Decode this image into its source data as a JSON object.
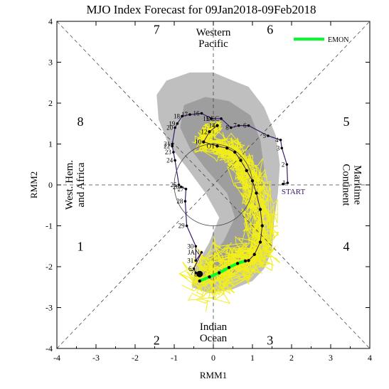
{
  "chart_data": {
    "type": "line",
    "title": "MJO Index Forecast for 09Jan2018-09Feb2018",
    "xlabel": "RMM1",
    "ylabel": "RMM2",
    "xlim": [
      -4,
      4
    ],
    "ylim": [
      -4,
      4
    ],
    "x_ticks": [
      -4,
      -3,
      -2,
      -1,
      0,
      1,
      2,
      3,
      4
    ],
    "y_ticks": [
      -4,
      -3,
      -2,
      -1,
      0,
      1,
      2,
      3,
      4
    ],
    "grid": false,
    "legend_position": "top-right",
    "phase_numbers": [
      {
        "label": "1",
        "x": -3.4,
        "y": -1.5
      },
      {
        "label": "2",
        "x": -1.45,
        "y": -3.8
      },
      {
        "label": "3",
        "x": 1.45,
        "y": -3.8
      },
      {
        "label": "4",
        "x": 3.4,
        "y": -1.5
      },
      {
        "label": "5",
        "x": 3.4,
        "y": 1.55
      },
      {
        "label": "6",
        "x": 1.45,
        "y": 3.8
      },
      {
        "label": "7",
        "x": -1.45,
        "y": 3.8
      },
      {
        "label": "8",
        "x": -3.4,
        "y": 1.55
      }
    ],
    "region_labels": [
      {
        "lines": [
          "Western",
          "Pacific"
        ],
        "x": 0,
        "y": 3.6,
        "rotate": 0
      },
      {
        "lines": [
          "Indian",
          "Ocean"
        ],
        "x": 0,
        "y": -3.6,
        "rotate": 0
      },
      {
        "lines": [
          "West. Hem.",
          "and Africa"
        ],
        "x": -3.55,
        "y": 0,
        "rotate": -90
      },
      {
        "lines": [
          "Maritime",
          "Continent"
        ],
        "x": 3.55,
        "y": 0,
        "rotate": 90
      }
    ],
    "observed_track": {
      "name": "",
      "color": "#3a1a6e",
      "points": [
        {
          "label": "START",
          "x": 1.78,
          "y": 0.02
        },
        {
          "label": "1",
          "x": 1.9,
          "y": 0.05
        },
        {
          "label": "2",
          "x": 1.88,
          "y": 0.5
        },
        {
          "label": "3",
          "x": 1.75,
          "y": 0.9
        },
        {
          "label": "4",
          "x": 1.72,
          "y": 1.1
        },
        {
          "label": "5",
          "x": 1.4,
          "y": 1.2
        },
        {
          "label": "6",
          "x": 0.9,
          "y": 1.45
        },
        {
          "label": "7",
          "x": 0.65,
          "y": 1.45
        },
        {
          "label": "8",
          "x": 0.45,
          "y": 1.4
        },
        {
          "label": "DEC",
          "x": 0.2,
          "y": 1.62
        },
        {
          "label": "15",
          "x": -0.05,
          "y": 1.62
        },
        {
          "label": "16",
          "x": -0.3,
          "y": 1.75
        },
        {
          "label": "17",
          "x": -0.6,
          "y": 1.72
        },
        {
          "label": "18",
          "x": -0.8,
          "y": 1.68
        },
        {
          "label": "19",
          "x": -0.92,
          "y": 1.5
        },
        {
          "label": "20",
          "x": -0.98,
          "y": 1.4
        },
        {
          "label": "21",
          "x": -1.05,
          "y": 1.0
        },
        {
          "label": "22",
          "x": -1.05,
          "y": 0.95
        },
        {
          "label": "23",
          "x": -1.02,
          "y": 0.8
        },
        {
          "label": "24",
          "x": -0.98,
          "y": 0.6
        },
        {
          "label": "25",
          "x": -0.88,
          "y": 0.0
        },
        {
          "label": "26",
          "x": -0.82,
          "y": -0.05
        },
        {
          "label": "27",
          "x": -0.7,
          "y": -0.1
        },
        {
          "label": "28",
          "x": -0.72,
          "y": -0.4
        },
        {
          "label": "29",
          "x": -0.68,
          "y": -1.0
        },
        {
          "label": "30",
          "x": -0.45,
          "y": -1.5
        },
        {
          "label": "31",
          "x": -0.45,
          "y": -1.85
        },
        {
          "label": "JAN",
          "x": -0.3,
          "y": -1.65
        },
        {
          "label": "6",
          "x": -0.5,
          "y": -2.05
        },
        {
          "label": "7",
          "x": -0.45,
          "y": -2.15
        },
        {
          "label": "8",
          "x": -0.35,
          "y": -2.18
        }
      ]
    },
    "current_track": {
      "name": "",
      "color": "#3a1a6e",
      "points": [
        {
          "label": "14",
          "x": 0.1,
          "y": 1.45
        },
        {
          "label": "12",
          "x": -0.1,
          "y": 1.3
        },
        {
          "label": "10",
          "x": -0.25,
          "y": 1.05
        },
        {
          "label": "OT",
          "x": 0.1,
          "y": 0.95
        },
        {
          "label": "",
          "x": 0.35,
          "y": 0.9
        },
        {
          "label": "",
          "x": 0.55,
          "y": 0.8
        },
        {
          "label": "",
          "x": 0.7,
          "y": 0.6
        },
        {
          "label": "",
          "x": 0.85,
          "y": 0.35
        },
        {
          "label": "",
          "x": 1.0,
          "y": 0.1
        },
        {
          "label": "",
          "x": 1.1,
          "y": -0.2
        },
        {
          "label": "",
          "x": 1.2,
          "y": -0.6
        },
        {
          "label": "",
          "x": 1.25,
          "y": -1.0
        },
        {
          "label": "",
          "x": 1.2,
          "y": -1.4
        },
        {
          "label": "",
          "x": 1.05,
          "y": -1.7
        },
        {
          "label": "",
          "x": 0.9,
          "y": -1.85
        }
      ]
    },
    "ensemble_mean": {
      "name": "EMON",
      "color": "#00ff2a",
      "points": [
        {
          "x": -0.35,
          "y": -2.35
        },
        {
          "x": -0.1,
          "y": -2.25
        },
        {
          "x": 0.15,
          "y": -2.15
        },
        {
          "x": 0.4,
          "y": -2.02
        },
        {
          "x": 0.62,
          "y": -1.92
        },
        {
          "x": 0.82,
          "y": -1.86
        }
      ]
    },
    "ensemble_members": {
      "count": 40,
      "color": "#f2ee1a"
    },
    "spread_band": {
      "color": "#a9a9a9",
      "outer": [
        [
          0.0,
          2.75
        ],
        [
          0.5,
          2.55
        ],
        [
          0.9,
          2.4
        ],
        [
          1.3,
          1.9
        ],
        [
          1.6,
          1.2
        ],
        [
          1.7,
          0.5
        ],
        [
          1.65,
          -0.2
        ],
        [
          1.55,
          -0.9
        ],
        [
          1.5,
          -1.6
        ],
        [
          1.3,
          -2.05
        ],
        [
          1.0,
          -2.35
        ],
        [
          0.5,
          -2.55
        ],
        [
          -0.1,
          -2.65
        ],
        [
          -0.55,
          -2.5
        ],
        [
          -0.45,
          -2.0
        ],
        [
          -0.1,
          -1.4
        ],
        [
          0.15,
          -0.8
        ],
        [
          -0.2,
          -0.2
        ],
        [
          -0.7,
          0.45
        ],
        [
          -1.15,
          1.0
        ],
        [
          -1.4,
          1.6
        ],
        [
          -1.45,
          2.2
        ],
        [
          -1.2,
          2.55
        ],
        [
          -0.6,
          2.75
        ]
      ],
      "inner": [
        [
          -0.2,
          2.15
        ],
        [
          0.4,
          2.05
        ],
        [
          0.95,
          1.7
        ],
        [
          1.2,
          1.1
        ],
        [
          1.3,
          0.4
        ],
        [
          1.25,
          -0.3
        ],
        [
          1.2,
          -1.0
        ],
        [
          1.1,
          -1.6
        ],
        [
          0.8,
          -2.0
        ],
        [
          0.2,
          -2.3
        ],
        [
          -0.3,
          -2.35
        ],
        [
          -0.2,
          -1.9
        ],
        [
          0.25,
          -1.4
        ],
        [
          0.55,
          -0.8
        ],
        [
          0.35,
          -0.2
        ],
        [
          -0.2,
          0.4
        ],
        [
          -0.6,
          0.9
        ],
        [
          -0.85,
          1.4
        ],
        [
          -0.75,
          1.95
        ]
      ]
    }
  }
}
